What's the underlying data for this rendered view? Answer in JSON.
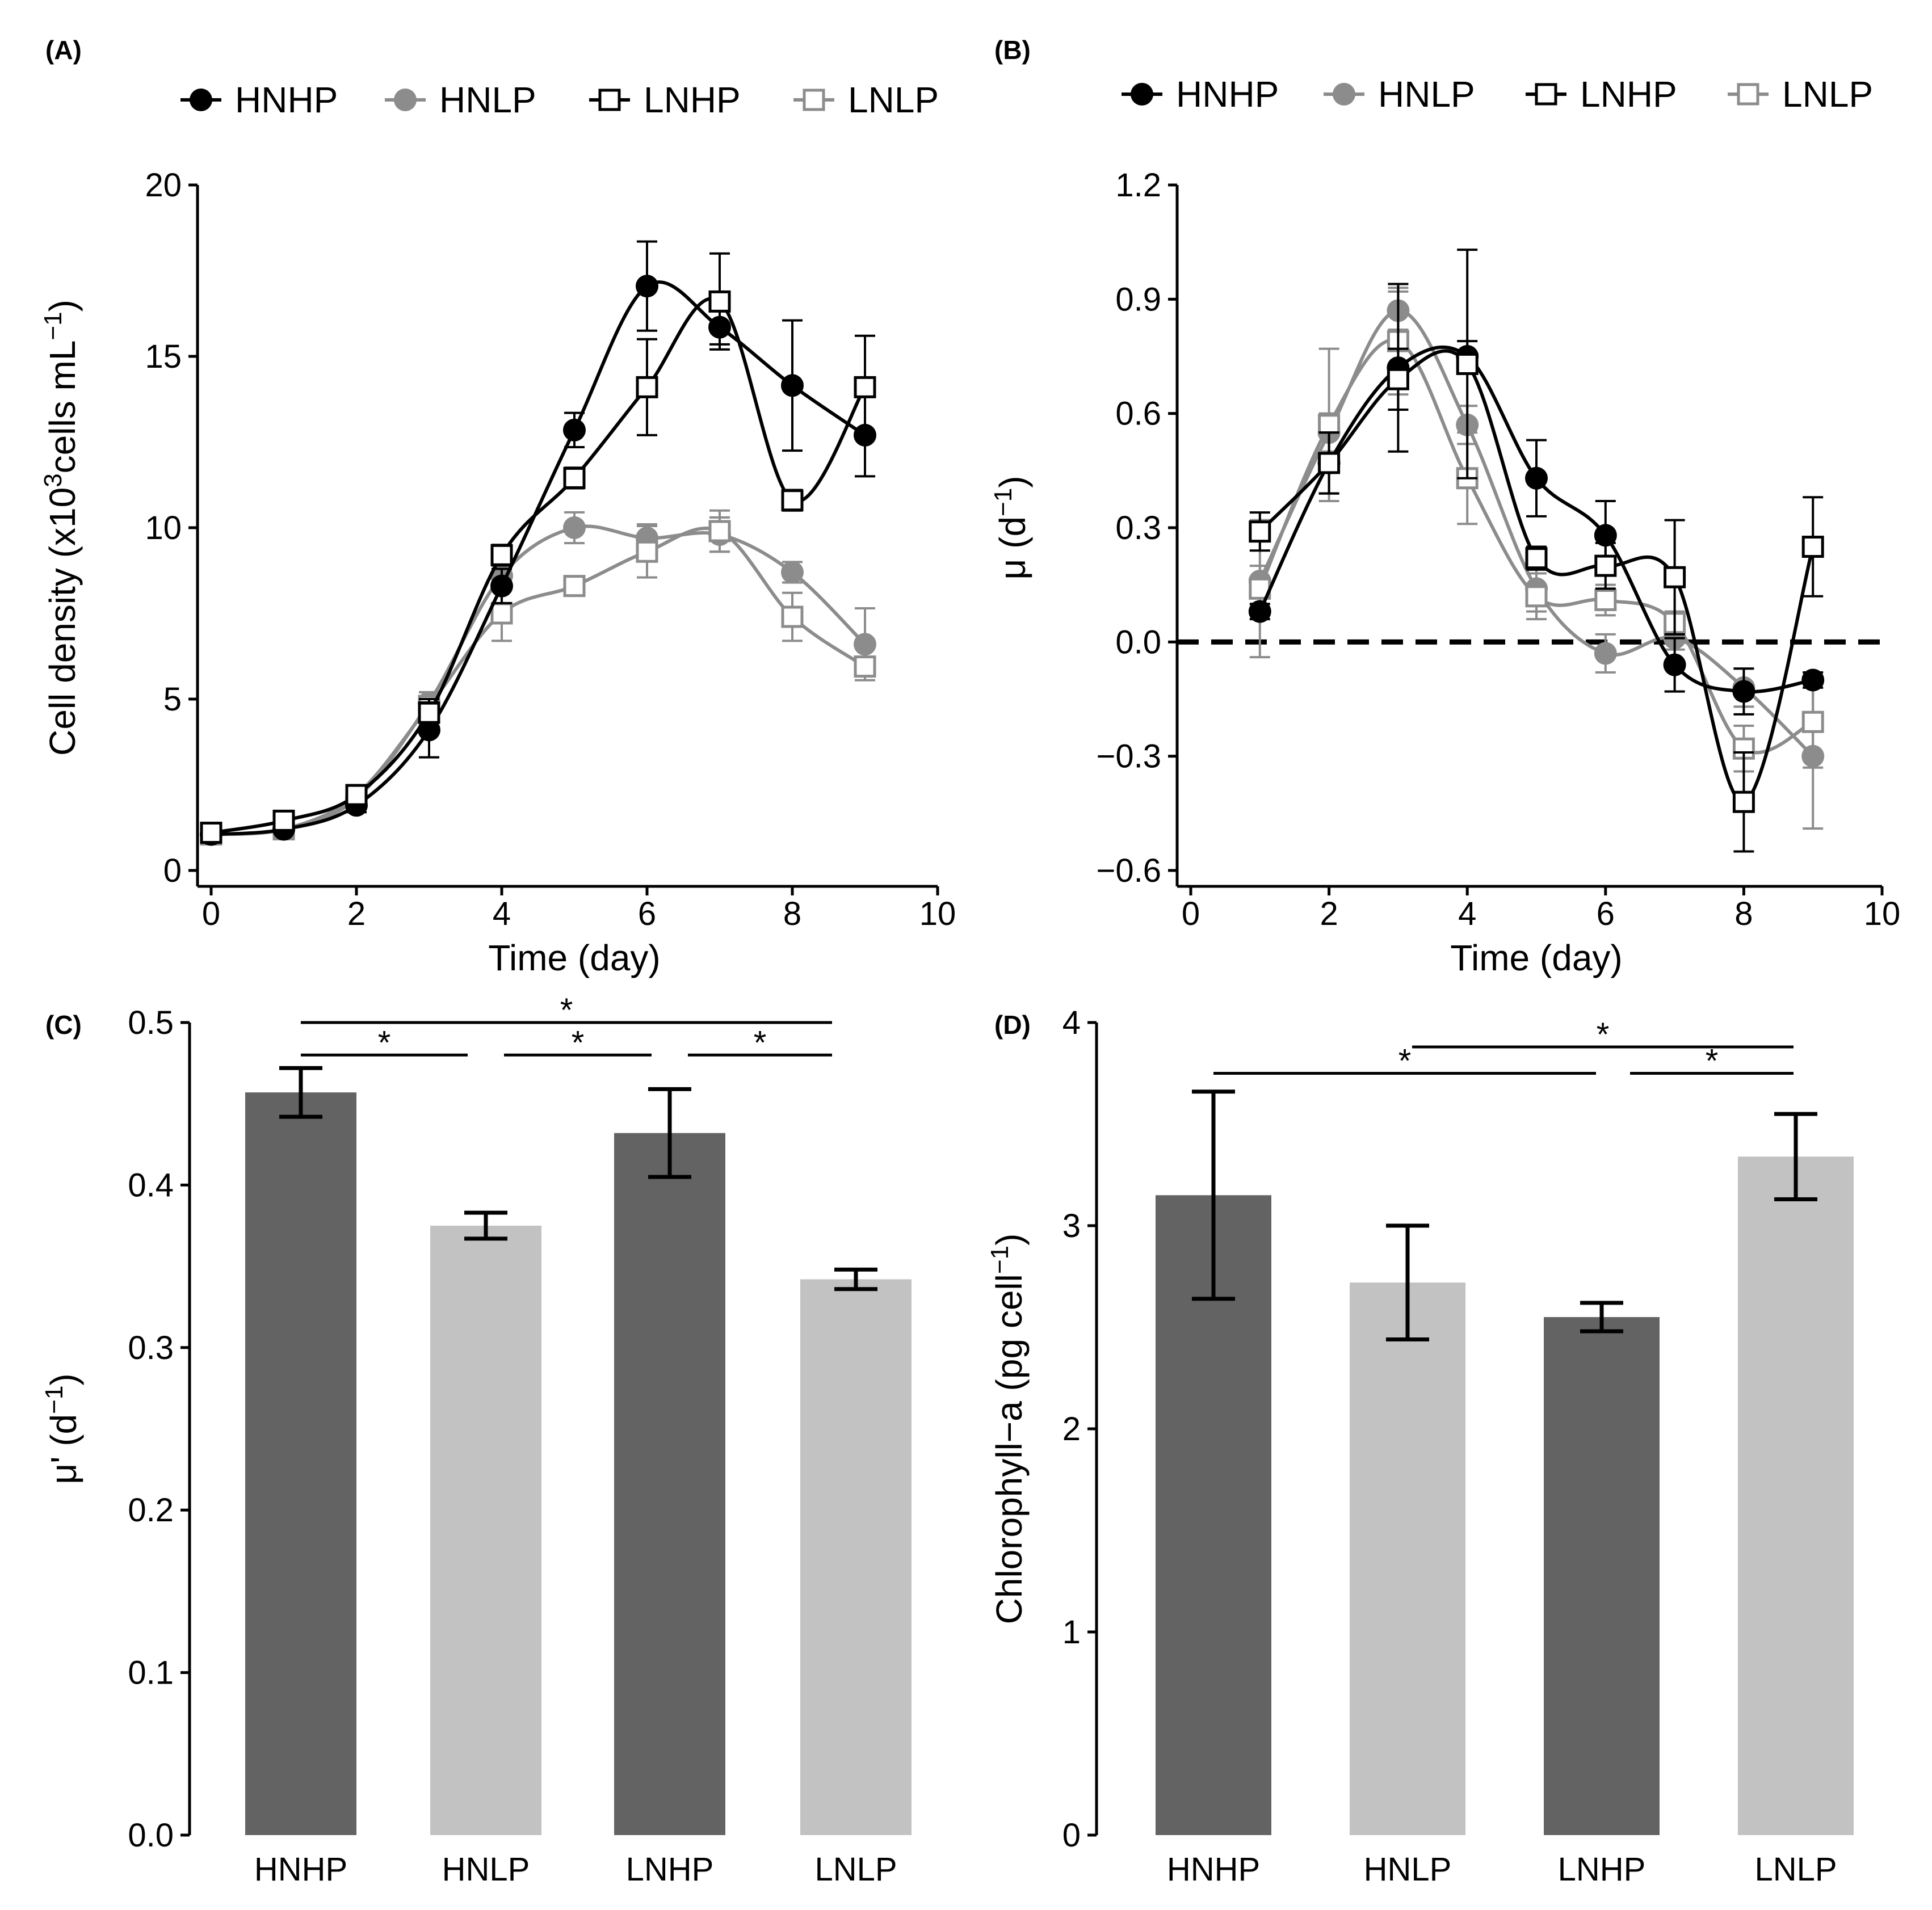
{
  "chart_data": [
    {
      "panel": "(A)",
      "type": "line",
      "xlabel": "Time (day)",
      "ylabel_text": "Cell density (x10",
      "ylabel_sup1": "3",
      "ylabel_mid": "cells mL",
      "ylabel_sup2": "−1",
      "ylabel_end": ")",
      "xlim": [
        0,
        10
      ],
      "ylim": [
        0,
        20
      ],
      "xticks": [
        0,
        2,
        4,
        6,
        8,
        10
      ],
      "yticks": [
        0,
        5,
        10,
        15,
        20
      ],
      "ytick_labels": [
        "0",
        "5",
        "10",
        "15",
        "20"
      ],
      "legend": [
        "HNHP",
        "HNLP",
        "LNHP",
        "LNLP"
      ],
      "x": [
        0,
        1,
        2,
        3,
        4,
        5,
        6,
        7,
        8,
        9
      ],
      "series": [
        {
          "name": "HNHP",
          "color": "#000000",
          "marker": "circle",
          "values": [
            1.05,
            1.2,
            1.9,
            4.1,
            8.3,
            12.85,
            17.05,
            15.85,
            14.15,
            12.7
          ],
          "errors": [
            0.1,
            0.1,
            0.2,
            0.8,
            0.5,
            0.5,
            1.3,
            0.5,
            1.9,
            1.2
          ]
        },
        {
          "name": "HNLP",
          "color": "#8c8c8c",
          "marker": "circle",
          "values": [
            1.05,
            1.2,
            2.1,
            4.9,
            8.6,
            10.0,
            9.7,
            9.8,
            8.7,
            6.6
          ],
          "errors": [
            0.1,
            0.1,
            0.2,
            0.3,
            0.4,
            0.45,
            0.4,
            0.5,
            0.3,
            1.05
          ]
        },
        {
          "name": "LNHP",
          "color": "#000000",
          "marker": "square",
          "values": [
            1.1,
            1.45,
            2.2,
            4.6,
            9.2,
            11.45,
            14.1,
            16.6,
            10.8,
            14.1
          ],
          "errors": [
            0.1,
            0.1,
            0.2,
            0.4,
            0.3,
            0.3,
            1.4,
            1.4,
            0.3,
            1.5
          ]
        },
        {
          "name": "LNLP",
          "color": "#8c8c8c",
          "marker": "square",
          "values": [
            1.05,
            1.2,
            2.2,
            4.8,
            7.5,
            8.3,
            9.3,
            9.9,
            7.4,
            5.95
          ],
          "errors": [
            0.1,
            0.1,
            0.2,
            0.4,
            0.8,
            0.2,
            0.75,
            0.6,
            0.7,
            0.2
          ]
        }
      ]
    },
    {
      "panel": "(B)",
      "type": "line",
      "xlabel": "Time (day)",
      "ylabel_text": "μ (d",
      "ylabel_sup1": "−1",
      "ylabel_end": ")",
      "xlim": [
        0,
        10
      ],
      "ylim": [
        -0.6,
        1.2
      ],
      "xticks": [
        0,
        2,
        4,
        6,
        8,
        10
      ],
      "yticks": [
        -0.6,
        -0.3,
        0.0,
        0.3,
        0.6,
        0.9,
        1.2
      ],
      "ytick_labels": [
        "−0.6",
        "−0.3",
        "0.0",
        "0.3",
        "0.6",
        "0.9",
        "1.2"
      ],
      "reference_line": 0,
      "legend": [
        "HNHP",
        "HNLP",
        "LNHP",
        "LNLP"
      ],
      "x": [
        1,
        2,
        3,
        4,
        5,
        6,
        7,
        8,
        9
      ],
      "series": [
        {
          "name": "HNHP",
          "color": "#000000",
          "marker": "circle",
          "values": [
            0.08,
            0.47,
            0.72,
            0.75,
            0.43,
            0.28,
            -0.06,
            -0.13,
            -0.1
          ],
          "errors": [
            0.02,
            0.08,
            0.22,
            0.04,
            0.1,
            0.09,
            0.07,
            0.06,
            0.02
          ]
        },
        {
          "name": "HNLP",
          "color": "#8c8c8c",
          "marker": "circle",
          "values": [
            0.16,
            0.55,
            0.87,
            0.57,
            0.14,
            -0.03,
            0.01,
            -0.12,
            -0.3
          ],
          "errors": [
            0.04,
            0.05,
            0.05,
            0.05,
            0.06,
            0.05,
            0.03,
            0.05,
            0.19
          ]
        },
        {
          "name": "LNHP",
          "color": "#000000",
          "marker": "square",
          "values": [
            0.29,
            0.47,
            0.69,
            0.73,
            0.22,
            0.2,
            0.17,
            -0.42,
            0.25
          ],
          "errors": [
            0.05,
            0.08,
            0.08,
            0.3,
            0.03,
            0.06,
            0.15,
            0.13,
            0.13
          ]
        },
        {
          "name": "LNLP",
          "color": "#8c8c8c",
          "marker": "square",
          "values": [
            0.14,
            0.57,
            0.79,
            0.43,
            0.12,
            0.11,
            0.05,
            -0.28,
            -0.21
          ],
          "errors": [
            0.18,
            0.2,
            0.14,
            0.12,
            0.06,
            0.04,
            0.03,
            0.06,
            0.12
          ]
        }
      ]
    },
    {
      "panel": "(C)",
      "type": "bar",
      "ylabel_text": "μ' (d",
      "ylabel_sup1": "−1",
      "ylabel_end": ")",
      "ylim": [
        0,
        0.5
      ],
      "yticks": [
        0.0,
        0.1,
        0.2,
        0.3,
        0.4,
        0.5
      ],
      "ytick_labels": [
        "0.0",
        "0.1",
        "0.2",
        "0.3",
        "0.4",
        "0.5"
      ],
      "categories": [
        "HNHP",
        "HNLP",
        "LNHP",
        "LNLP"
      ],
      "values": [
        0.457,
        0.375,
        0.432,
        0.342
      ],
      "errors": [
        0.015,
        0.008,
        0.027,
        0.006
      ],
      "colors": [
        "#636363",
        "#c2c2c2",
        "#636363",
        "#c2c2c2"
      ],
      "significance": [
        {
          "from": 0,
          "to": 3,
          "label": "*",
          "level": 0.5
        },
        {
          "from": 0,
          "to": 1,
          "label": "*",
          "level": 0.48
        },
        {
          "from": 1,
          "to": 2,
          "label": "*",
          "level": 0.48
        },
        {
          "from": 2,
          "to": 3,
          "label": "*",
          "level": 0.48
        }
      ]
    },
    {
      "panel": "(D)",
      "type": "bar",
      "ylabel_text": "Chlorophyll−a (pg cell",
      "ylabel_sup1": "−1",
      "ylabel_end": ")",
      "ylim": [
        0,
        4
      ],
      "yticks": [
        0,
        1,
        2,
        3,
        4
      ],
      "ytick_labels": [
        "0",
        "1",
        "2",
        "3",
        "4"
      ],
      "categories": [
        "HNHP",
        "HNLP",
        "LNHP",
        "LNLP"
      ],
      "values": [
        3.15,
        2.72,
        2.55,
        3.34
      ],
      "errors": [
        0.51,
        0.28,
        0.07,
        0.21
      ],
      "colors": [
        "#636363",
        "#c2c2c2",
        "#636363",
        "#c2c2c2"
      ],
      "significance": [
        {
          "from": 1,
          "to": 3,
          "label": "*",
          "level": 3.88
        },
        {
          "from": 0,
          "to": 2,
          "label": "*",
          "level": 3.75
        },
        {
          "from": 2,
          "to": 3,
          "label": "*",
          "level": 3.75
        }
      ]
    }
  ]
}
